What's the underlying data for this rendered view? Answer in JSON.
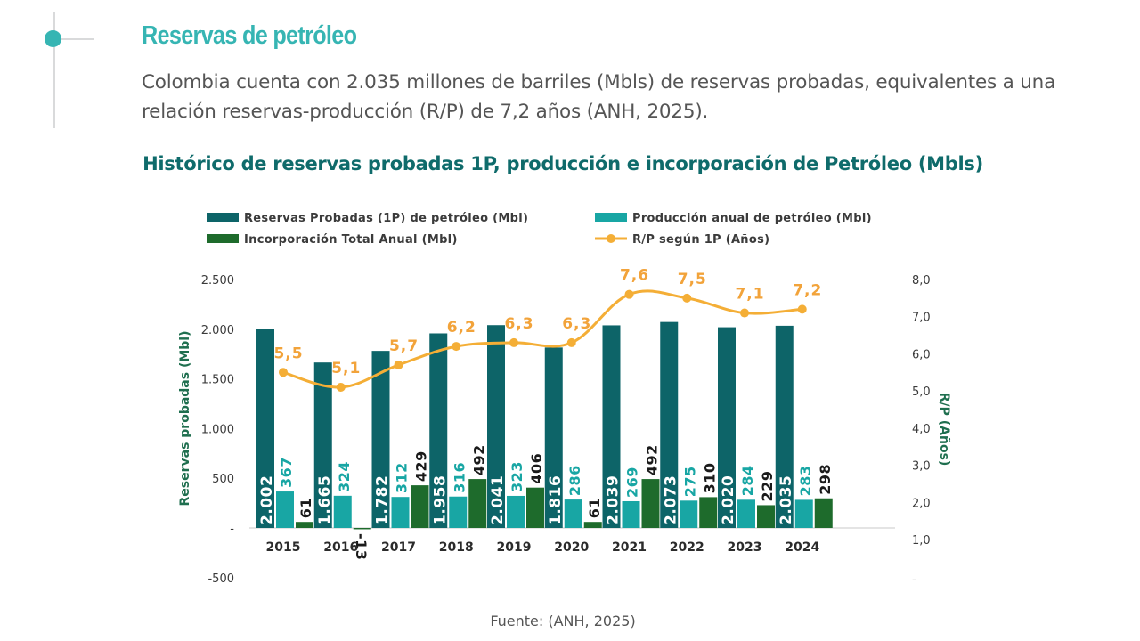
{
  "header": {
    "title": "Reservas de petróleo",
    "intro": "Colombia cuenta con 2.035 millones de barriles (Mbls) de reservas probadas, equivalentes a una relación reservas-producción (R/P) de 7,2 años (ANH, 2025)."
  },
  "colors": {
    "accent": "#36b5b3",
    "title_dark": "#0f6b6b",
    "reserves": "#0d6468",
    "production": "#18a6a4",
    "incorporation": "#1e6b2c",
    "rp_line": "#f4ae36",
    "rp_label": "#f2a33a"
  },
  "chart_data": {
    "type": "bar",
    "title": "Histórico de reservas probadas 1P, producción e incorporación de Petróleo (Mbls)",
    "categories": [
      "2015",
      "2016",
      "2017",
      "2018",
      "2019",
      "2020",
      "2021",
      "2022",
      "2023",
      "2024"
    ],
    "series": [
      {
        "name": "Reservas Probadas (1P) de petróleo (Mbl)",
        "kind": "bar",
        "axis": "left",
        "values": [
          2002,
          1665,
          1782,
          1958,
          2041,
          1816,
          2039,
          2073,
          2020,
          2035
        ],
        "labels": [
          "2.002",
          "1.665",
          "1.782",
          "1.958",
          "2.041",
          "1.816",
          "2.039",
          "2.073",
          "2.020",
          "2.035"
        ]
      },
      {
        "name": "Producción anual de petróleo (Mbl)",
        "kind": "bar",
        "axis": "left",
        "values": [
          367,
          324,
          312,
          316,
          323,
          286,
          269,
          275,
          284,
          283
        ],
        "labels": [
          "367",
          "324",
          "312",
          "316",
          "323",
          "286",
          "269",
          "275",
          "284",
          "283"
        ]
      },
      {
        "name": "Incorporación Total Anual  (Mbl)",
        "kind": "bar",
        "axis": "left",
        "values": [
          61,
          -13,
          429,
          492,
          406,
          61,
          492,
          310,
          229,
          298
        ],
        "labels": [
          "61",
          "-13",
          "429",
          "492",
          "406",
          "61",
          "492",
          "310",
          "229",
          "298"
        ]
      },
      {
        "name": "R/P según 1P (Años)",
        "kind": "line",
        "axis": "right",
        "values": [
          5.5,
          5.1,
          5.7,
          6.2,
          6.3,
          6.3,
          7.6,
          7.5,
          7.1,
          7.2
        ],
        "labels": [
          "5,5",
          "5,1",
          "5,7",
          "6,2",
          "6,3",
          "6,3",
          "7,6",
          "7,5",
          "7,1",
          "7,2"
        ]
      }
    ],
    "ylabel": "Reservas probadas (Mbl)",
    "y2label": "R/P (Años)",
    "ylim": [
      -500,
      2500
    ],
    "y2lim": [
      0,
      8
    ],
    "yticks": [
      {
        "value": 2500,
        "label": "2.500"
      },
      {
        "value": 2000,
        "label": "2.000"
      },
      {
        "value": 1500,
        "label": "1.500"
      },
      {
        "value": 1000,
        "label": "1.000"
      },
      {
        "value": 500,
        "label": "500"
      },
      {
        "value": 0,
        "label": "-"
      },
      {
        "value": -500,
        "label": "-500"
      }
    ],
    "y2ticks": [
      {
        "value": 8,
        "label": "8,0"
      },
      {
        "value": 7,
        "label": "7,0"
      },
      {
        "value": 6,
        "label": "6,0"
      },
      {
        "value": 5,
        "label": "5,0"
      },
      {
        "value": 4,
        "label": "4,0"
      },
      {
        "value": 3,
        "label": "3,0"
      },
      {
        "value": 2,
        "label": "2,0"
      },
      {
        "value": 1,
        "label": "1,0"
      },
      {
        "value": 0,
        "label": "-"
      }
    ],
    "legend_position": "top",
    "grid": false
  },
  "source": "Fuente: (ANH, 2025)"
}
